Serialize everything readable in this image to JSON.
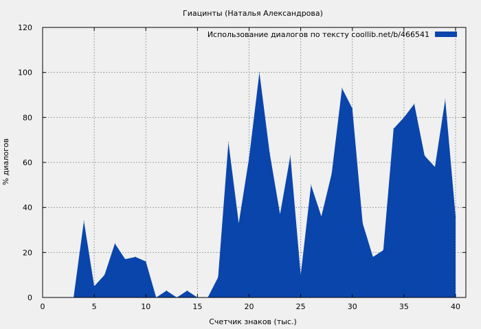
{
  "chart_data": {
    "type": "area",
    "title": "Гиацинты (Наталья Александрова)",
    "xlabel": "Счетчик знаков (тыс.)",
    "ylabel": "% диалогов",
    "xlim": [
      0,
      41
    ],
    "ylim": [
      0,
      120
    ],
    "x_ticks": [
      0,
      5,
      10,
      15,
      20,
      25,
      30,
      35,
      40
    ],
    "y_ticks": [
      0,
      20,
      40,
      60,
      80,
      100,
      120
    ],
    "grid": true,
    "legend_position": "top-right",
    "series": [
      {
        "name": "Использование диалогов по тексту  coollib.net/b/466541",
        "color": "#0a45ab",
        "x": [
          0,
          1,
          2,
          3,
          4,
          5,
          6,
          7,
          8,
          9,
          10,
          11,
          12,
          13,
          14,
          15,
          16,
          17,
          18,
          19,
          20,
          21,
          22,
          23,
          24,
          25,
          26,
          27,
          28,
          29,
          30,
          31,
          32,
          33,
          34,
          35,
          36,
          37,
          38,
          39,
          40
        ],
        "values": [
          0,
          0,
          0,
          0,
          34,
          5,
          10,
          24,
          17,
          18,
          16,
          0,
          3,
          0,
          3,
          0,
          0,
          9,
          69,
          33,
          62,
          100,
          64,
          37,
          63,
          10,
          50,
          36,
          55,
          93,
          84,
          33,
          18,
          21,
          75,
          80,
          86,
          63,
          58,
          88,
          36
        ]
      }
    ]
  }
}
